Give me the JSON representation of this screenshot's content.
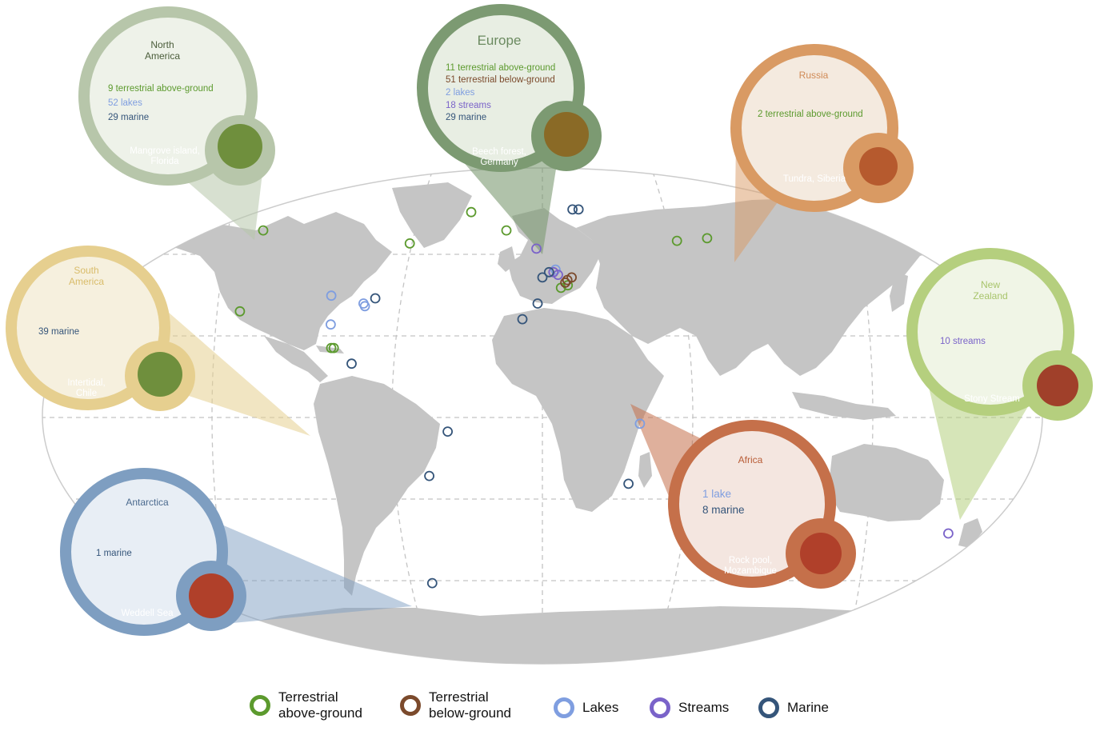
{
  "colors": {
    "terrestrial_above": "#5c9a2e",
    "terrestrial_below": "#7b4a2c",
    "lakes": "#7f9ee0",
    "streams": "#7a63c9",
    "marine": "#35557a",
    "land": "#c5c5c5",
    "grid": "#bdbdbd"
  },
  "regions": {
    "north_america": {
      "name": "North\nAmerica",
      "counts": [
        "9 terrestrial above-ground",
        "52 lakes",
        "29 marine"
      ],
      "site": "Mangrove island,\nFlorida",
      "color": "#b7c6aa"
    },
    "europe": {
      "name": "Europe",
      "counts": [
        "11 terrestrial above-ground",
        "51 terrestrial below-ground",
        "2 lakes",
        "18 streams",
        "29 marine"
      ],
      "site": "Beech forest,\nGermany",
      "color": "#7c9a72"
    },
    "russia": {
      "name": "Russia",
      "counts": [
        "2 terrestrial above-ground"
      ],
      "site": "Tundra, Siberia",
      "color": "#d99a63"
    },
    "south_america": {
      "name": "South\nAmerica",
      "counts": [
        "39 marine"
      ],
      "site": "Intertidal,\nChile",
      "color": "#e6cf8f"
    },
    "new_zealand": {
      "name": "New\nZealand",
      "counts": [
        "10 streams"
      ],
      "site": "Stony Stream",
      "color": "#b5cf7e"
    },
    "africa": {
      "name": "Africa",
      "counts": [
        "1 lake",
        "8 marine"
      ],
      "site": "Rock pool,\nMozambique",
      "color": "#c5704a"
    },
    "antarctica": {
      "name": "Antarctica",
      "counts": [
        "1 marine"
      ],
      "site": "Weddell Sea",
      "color": "#7e9ec1"
    }
  },
  "legend": [
    {
      "label": "Terrestrial\nabove-ground",
      "color": "#5c9a2e"
    },
    {
      "label": "Terrestrial\nbelow-ground",
      "color": "#7b4a2c"
    },
    {
      "label": "Lakes",
      "color": "#7f9ee0"
    },
    {
      "label": "Streams",
      "color": "#7a63c9"
    },
    {
      "label": "Marine",
      "color": "#35557a"
    }
  ],
  "sites": [
    {
      "type": "terrestrial_above",
      "lon": -155,
      "lat": 71
    },
    {
      "type": "terrestrial_above",
      "lon": -46,
      "lat": 78
    },
    {
      "type": "terrestrial_above",
      "lon": -68,
      "lat": 66
    },
    {
      "type": "terrestrial_above",
      "lon": -20,
      "lat": 71
    },
    {
      "type": "terrestrial_above",
      "lon": -123,
      "lat": 40
    },
    {
      "type": "terrestrial_above",
      "lon": -81,
      "lat": 26
    },
    {
      "type": "terrestrial_above",
      "lon": -80,
      "lat": 26
    },
    {
      "type": "terrestrial_above",
      "lon": 8,
      "lat": 49
    },
    {
      "type": "terrestrial_above",
      "lon": 11,
      "lat": 50
    },
    {
      "type": "terrestrial_above",
      "lon": 70,
      "lat": 67
    },
    {
      "type": "terrestrial_above",
      "lon": 87,
      "lat": 68
    },
    {
      "type": "terrestrial_below",
      "lon": 11,
      "lat": 52
    },
    {
      "type": "terrestrial_below",
      "lon": 13,
      "lat": 53
    },
    {
      "type": "terrestrial_below",
      "lon": 10,
      "lat": 51
    },
    {
      "type": "lakes",
      "lon": -89,
      "lat": 46
    },
    {
      "type": "lakes",
      "lon": -74,
      "lat": 43
    },
    {
      "type": "lakes",
      "lon": -73,
      "lat": 42
    },
    {
      "type": "lakes",
      "lon": -84,
      "lat": 35
    },
    {
      "type": "lakes",
      "lon": 6,
      "lat": 56
    },
    {
      "type": "lakes",
      "lon": 36,
      "lat": -3
    },
    {
      "type": "streams",
      "lon": -3,
      "lat": 64
    },
    {
      "type": "streams",
      "lon": 5,
      "lat": 55
    },
    {
      "type": "streams",
      "lon": 7,
      "lat": 54
    },
    {
      "type": "streams",
      "lon": 170,
      "lat": -45
    },
    {
      "type": "marine",
      "lon": -70,
      "lat": 45
    },
    {
      "type": "marine",
      "lon": -72,
      "lat": 20
    },
    {
      "type": "marine",
      "lon": 20,
      "lat": 79
    },
    {
      "type": "marine",
      "lon": 24,
      "lat": 79
    },
    {
      "type": "marine",
      "lon": 0,
      "lat": 53
    },
    {
      "type": "marine",
      "lon": 3,
      "lat": 55
    },
    {
      "type": "marine",
      "lon": -2,
      "lat": 43
    },
    {
      "type": "marine",
      "lon": -8,
      "lat": 37
    },
    {
      "type": "marine",
      "lon": -35,
      "lat": -6
    },
    {
      "type": "marine",
      "lon": -43,
      "lat": -23
    },
    {
      "type": "marine",
      "lon": 33,
      "lat": -26
    },
    {
      "type": "marine",
      "lon": -55,
      "lat": -64
    }
  ]
}
